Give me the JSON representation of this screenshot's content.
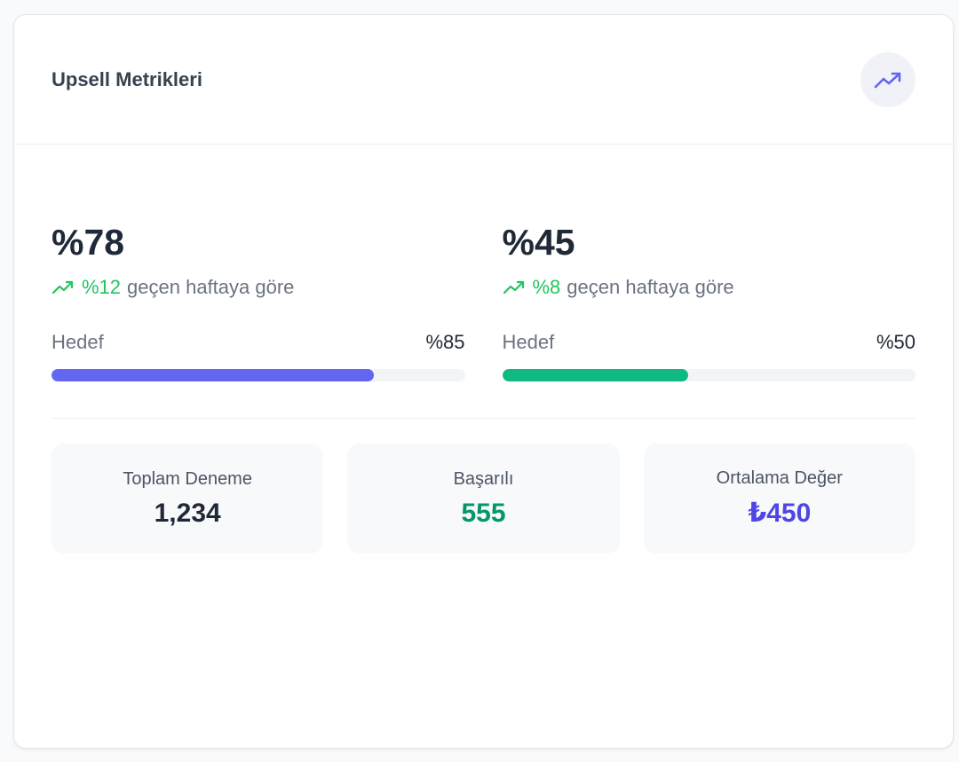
{
  "header": {
    "title": "Upsell Metrikleri",
    "icon": "trending-up-icon"
  },
  "metrics": [
    {
      "value": "%78",
      "change": "%12",
      "change_text": "geçen haftaya göre",
      "goal_label": "Hedef",
      "goal_value": "%85",
      "progress_percent": 78,
      "color": "#6366f1"
    },
    {
      "value": "%45",
      "change": "%8",
      "change_text": "geçen haftaya göre",
      "goal_label": "Hedef",
      "goal_value": "%50",
      "progress_percent": 45,
      "color": "#10b981"
    }
  ],
  "stats": [
    {
      "label": "Toplam Deneme",
      "value": "1,234",
      "color": "#1f2937"
    },
    {
      "label": "Başarılı",
      "value": "555",
      "color": "#059669"
    },
    {
      "label": "Ortalama Değer",
      "value": "₺450",
      "color": "#4f46e5"
    }
  ],
  "colors": {
    "trend_up": "#22c55e",
    "header_icon": "#6366f1"
  }
}
